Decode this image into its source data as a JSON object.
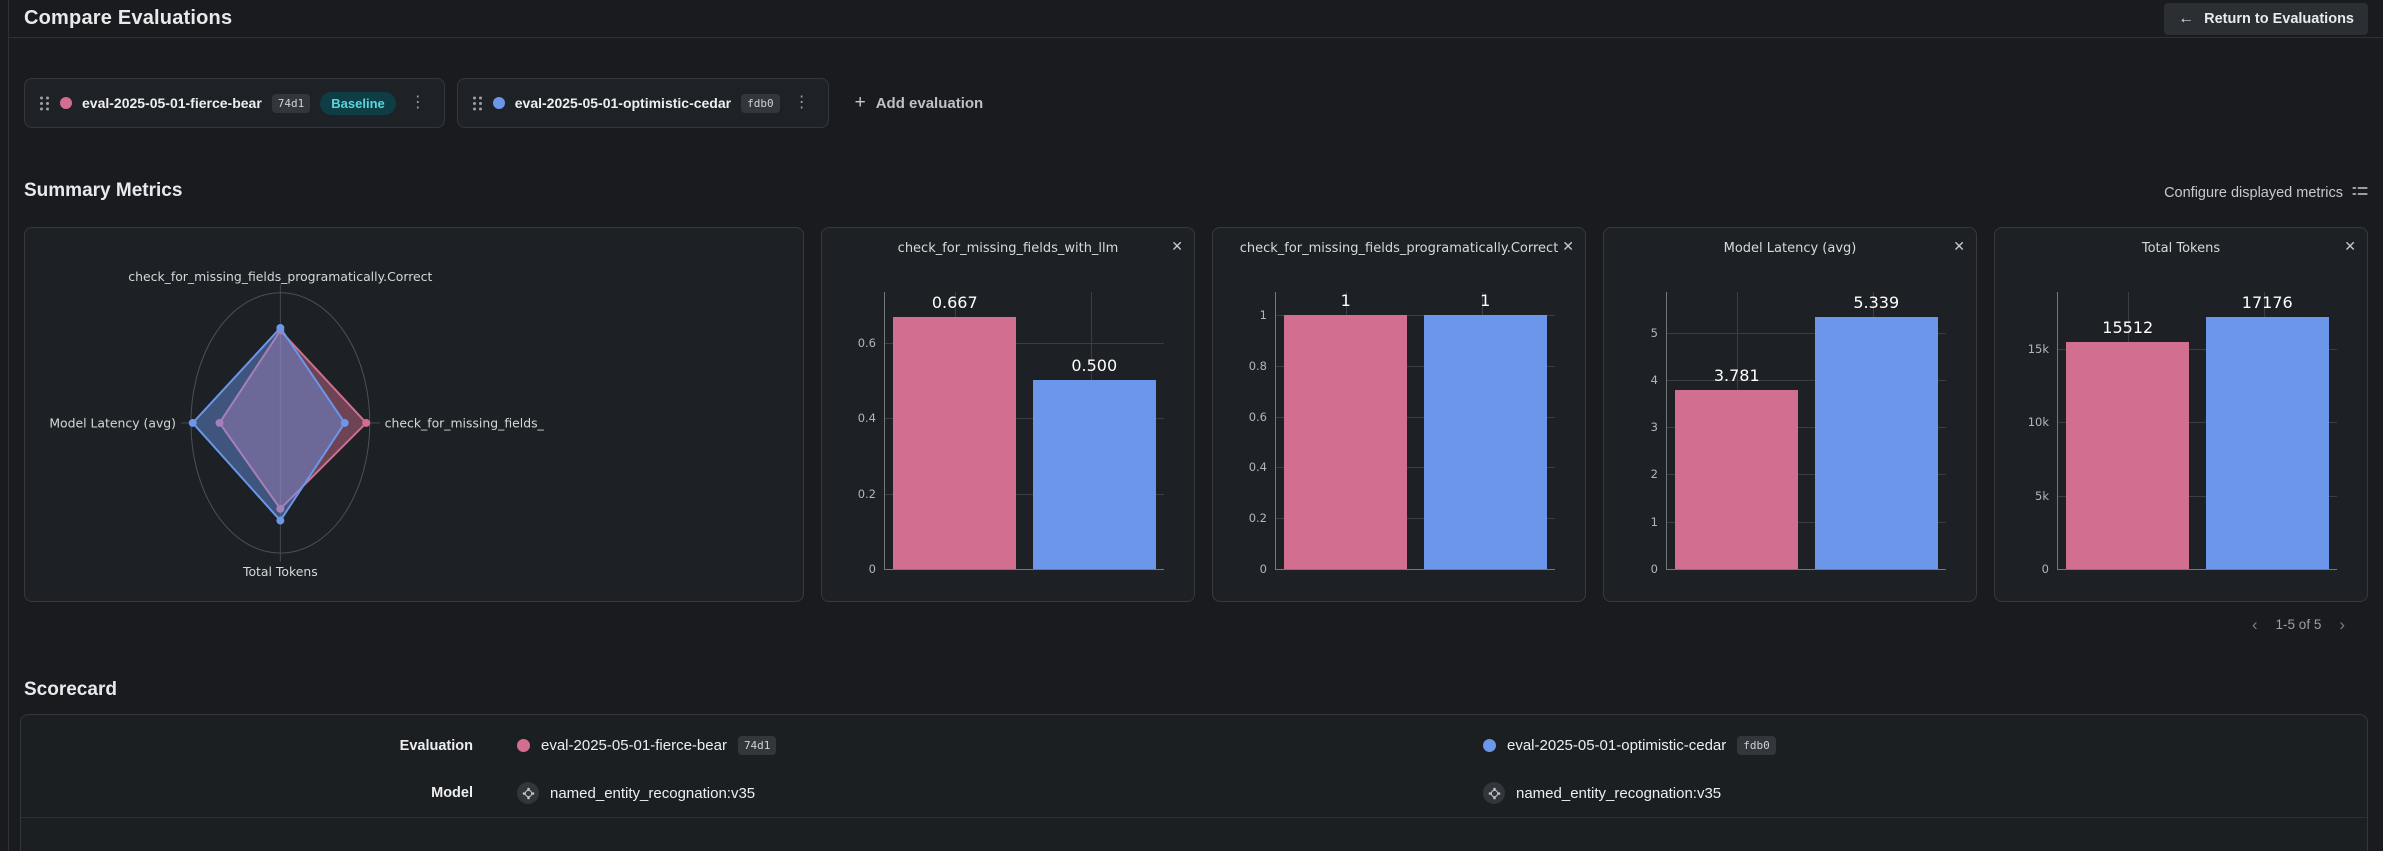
{
  "header": {
    "title": "Compare Evaluations",
    "return_button_label": "Return to Evaluations"
  },
  "toolbar": {
    "add_evaluation_label": "Add evaluation"
  },
  "evaluations": [
    {
      "name": "eval-2025-05-01-fierce-bear",
      "hash": "74d1",
      "color": "#d26e90",
      "baseline_label": "Baseline"
    },
    {
      "name": "eval-2025-05-01-optimistic-cedar",
      "hash": "fdb0",
      "color": "#6b96ea"
    }
  ],
  "summary": {
    "title": "Summary Metrics",
    "configure_label": "Configure displayed metrics",
    "pagination": "1-5 of 5"
  },
  "chart_data": [
    {
      "type": "radar",
      "axes": [
        {
          "position": "top",
          "label": "check_for_missing_fields_programatically.Correct"
        },
        {
          "position": "right",
          "label": "check_for_missing_fields_"
        },
        {
          "position": "bottom",
          "label": "Total Tokens"
        },
        {
          "position": "left",
          "label": "Model Latency (avg)"
        }
      ],
      "series": [
        {
          "name": "eval-2025-05-01-fierce-bear",
          "color": "#d26e90",
          "values": [
            1,
            0.667,
            15512,
            3.781
          ],
          "radius_fractions": [
            0.71,
            0.96,
            0.66,
            0.68
          ]
        },
        {
          "name": "eval-2025-05-01-optimistic-cedar",
          "color": "#6b96ea",
          "values": [
            1,
            0.5,
            17176,
            5.339
          ],
          "radius_fractions": [
            0.73,
            0.72,
            0.75,
            0.98
          ]
        }
      ]
    },
    {
      "type": "bar",
      "title": "check_for_missing_fields_with_llm",
      "categories": [
        "eval-2025-05-01-fierce-bear",
        "eval-2025-05-01-optimistic-cedar"
      ],
      "values": [
        0.667,
        0.5
      ],
      "value_labels": [
        "0.667",
        "0.500"
      ],
      "colors": [
        "#d26e90",
        "#6b96ea"
      ],
      "ticks": [
        0,
        0.2,
        0.4,
        0.6
      ],
      "tick_labels": [
        "0",
        "0.2",
        "0.4",
        "0.6"
      ],
      "ylim": [
        0,
        0.734
      ]
    },
    {
      "type": "bar",
      "title": "check_for_missing_fields_programatically.Correct",
      "categories": [
        "eval-2025-05-01-fierce-bear",
        "eval-2025-05-01-optimistic-cedar"
      ],
      "values": [
        1,
        1
      ],
      "value_labels": [
        "1",
        "1"
      ],
      "colors": [
        "#d26e90",
        "#6b96ea"
      ],
      "ticks": [
        0,
        0.2,
        0.4,
        0.6,
        0.8,
        1
      ],
      "tick_labels": [
        "0",
        "0.2",
        "0.4",
        "0.6",
        "0.8",
        "1"
      ],
      "ylim": [
        0,
        1.09
      ]
    },
    {
      "type": "bar",
      "title": "Model Latency (avg)",
      "categories": [
        "eval-2025-05-01-fierce-bear",
        "eval-2025-05-01-optimistic-cedar"
      ],
      "values": [
        3.781,
        5.339
      ],
      "value_labels": [
        "3.781",
        "5.339"
      ],
      "colors": [
        "#d26e90",
        "#6b96ea"
      ],
      "ticks": [
        0,
        1,
        2,
        3,
        4,
        5
      ],
      "tick_labels": [
        "0",
        "1",
        "2",
        "3",
        "4",
        "5"
      ],
      "ylim": [
        0,
        5.86
      ]
    },
    {
      "type": "bar",
      "title": "Total Tokens",
      "categories": [
        "eval-2025-05-01-fierce-bear",
        "eval-2025-05-01-optimistic-cedar"
      ],
      "values": [
        15512,
        17176
      ],
      "value_labels": [
        "15512",
        "17176"
      ],
      "colors": [
        "#d26e90",
        "#6b96ea"
      ],
      "ticks": [
        0,
        5000,
        10000,
        15000
      ],
      "tick_labels": [
        "0",
        "5k",
        "10k",
        "15k"
      ],
      "ylim": [
        0,
        18900
      ]
    }
  ],
  "scorecard": {
    "title": "Scorecard",
    "row_labels": {
      "evaluation": "Evaluation",
      "model": "Model"
    },
    "models": [
      "named_entity_recognation:v35",
      "named_entity_recognation:v35"
    ]
  }
}
